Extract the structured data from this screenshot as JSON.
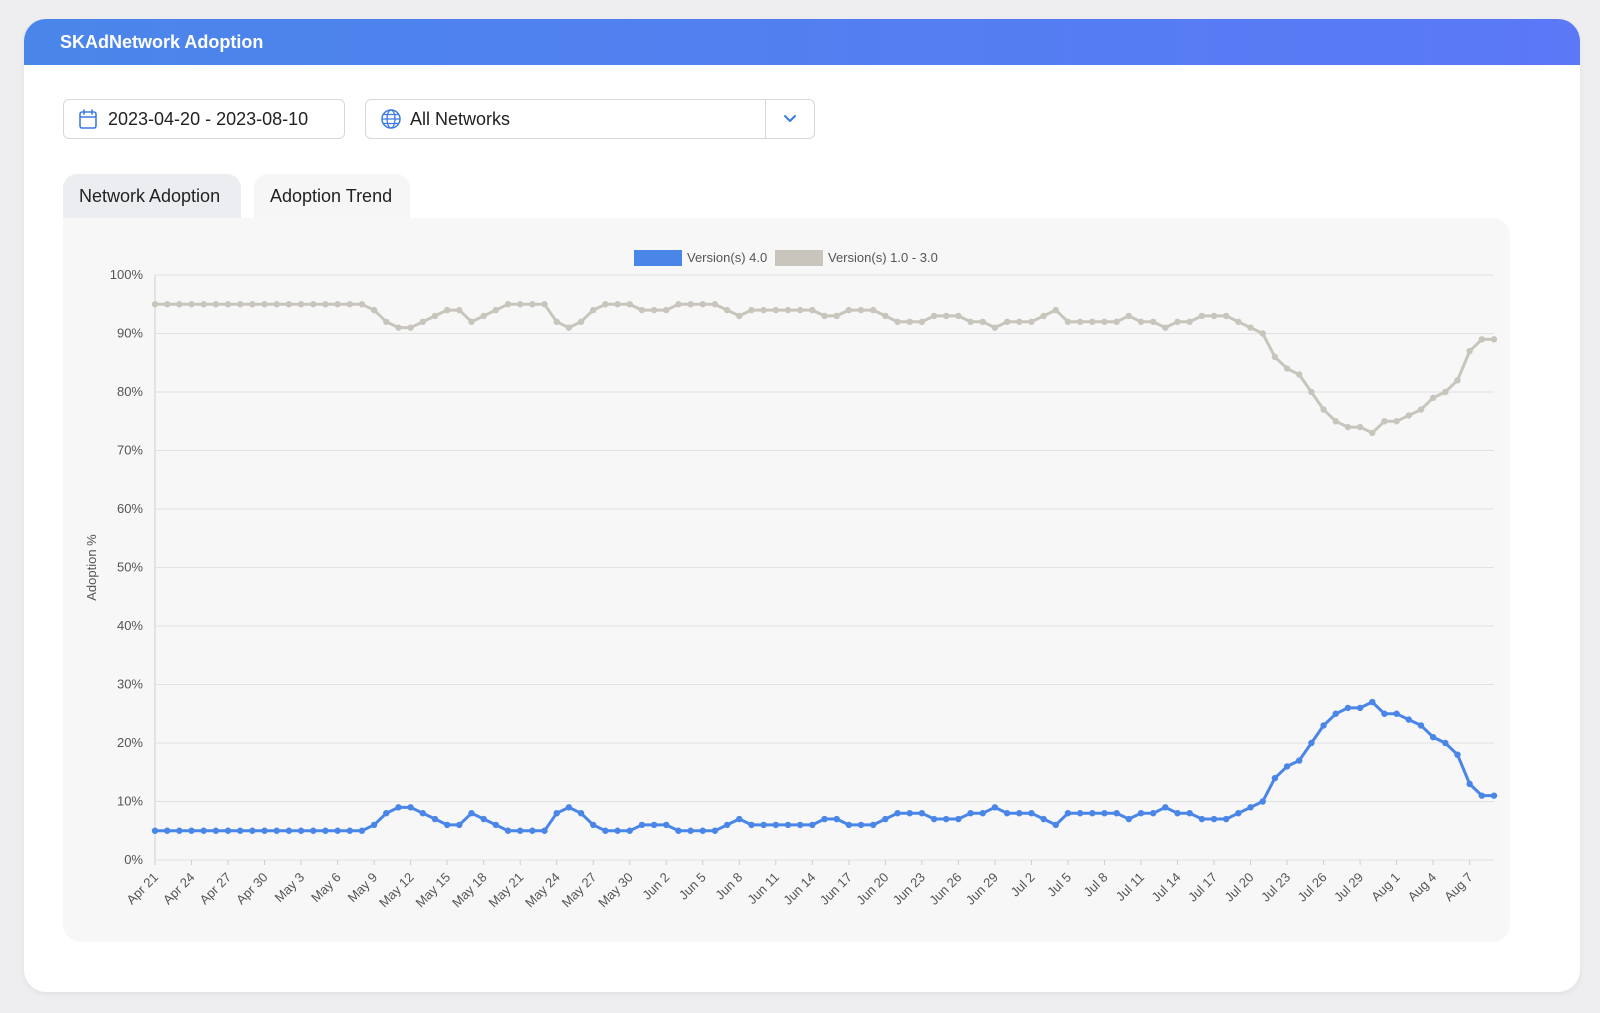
{
  "header": {
    "title": "SKAdNetwork Adoption"
  },
  "filters": {
    "date_range": "2023-04-20 - 2023-08-10",
    "network": "All Networks"
  },
  "tabs": [
    {
      "label": "Network Adoption"
    },
    {
      "label": "Adoption Trend"
    }
  ],
  "colors": {
    "header_gradient_start": "#4a86ea",
    "header_gradient_end": "#5b78f7",
    "v4": "#4a86e8",
    "v1_3": "#c8c6bc",
    "icon": "#3b7be0"
  },
  "icons": {
    "date": "calendar-icon",
    "network": "globe-icon",
    "dropdown": "chevron-down-icon"
  },
  "chart_data": {
    "type": "line",
    "ylabel": "Adoption %",
    "ylim": [
      0,
      100
    ],
    "yticks": [
      "0%",
      "10%",
      "20%",
      "30%",
      "40%",
      "50%",
      "60%",
      "70%",
      "80%",
      "90%",
      "100%"
    ],
    "grid": true,
    "legend_position": "top-center",
    "x_tick_labels": [
      "Apr 21",
      "Apr 24",
      "Apr 27",
      "Apr 30",
      "May 3",
      "May 6",
      "May 9",
      "May 12",
      "May 15",
      "May 18",
      "May 21",
      "May 24",
      "May 27",
      "May 30",
      "Jun 2",
      "Jun 5",
      "Jun 8",
      "Jun 11",
      "Jun 14",
      "Jun 17",
      "Jun 20",
      "Jun 23",
      "Jun 26",
      "Jun 29",
      "Jul 2",
      "Jul 5",
      "Jul 8",
      "Jul 11",
      "Jul 14",
      "Jul 17",
      "Jul 20",
      "Jul 23",
      "Jul 26",
      "Jul 29",
      "Aug 1",
      "Aug 4",
      "Aug 7"
    ],
    "x_start": "2023-04-21",
    "x_end": "2023-08-10",
    "series": [
      {
        "name": "Version(s) 4.0",
        "color": "#4a86e8",
        "values": [
          5,
          5,
          5,
          5,
          5,
          5,
          5,
          5,
          5,
          5,
          5,
          5,
          5,
          5,
          5,
          5,
          5,
          5,
          6,
          8,
          9,
          9,
          8,
          7,
          6,
          6,
          8,
          7,
          6,
          5,
          5,
          5,
          5,
          8,
          9,
          8,
          6,
          5,
          5,
          5,
          6,
          6,
          6,
          5,
          5,
          5,
          5,
          6,
          7,
          6,
          6,
          6,
          6,
          6,
          6,
          7,
          7,
          6,
          6,
          6,
          7,
          8,
          8,
          8,
          7,
          7,
          7,
          8,
          8,
          9,
          8,
          8,
          8,
          7,
          6,
          8,
          8,
          8,
          8,
          8,
          7,
          8,
          8,
          9,
          8,
          8,
          7,
          7,
          7,
          8,
          9,
          10,
          14,
          16,
          17,
          20,
          23,
          25,
          26,
          26,
          27,
          25,
          25,
          24,
          23,
          21,
          20,
          18,
          13,
          11,
          11
        ]
      },
      {
        "name": "Version(s) 1.0 - 3.0",
        "color": "#c8c6bc",
        "values": [
          95,
          95,
          95,
          95,
          95,
          95,
          95,
          95,
          95,
          95,
          95,
          95,
          95,
          95,
          95,
          95,
          95,
          95,
          94,
          92,
          91,
          91,
          92,
          93,
          94,
          94,
          92,
          93,
          94,
          95,
          95,
          95,
          95,
          92,
          91,
          92,
          94,
          95,
          95,
          95,
          94,
          94,
          94,
          95,
          95,
          95,
          95,
          94,
          93,
          94,
          94,
          94,
          94,
          94,
          94,
          93,
          93,
          94,
          94,
          94,
          93,
          92,
          92,
          92,
          93,
          93,
          93,
          92,
          92,
          91,
          92,
          92,
          92,
          93,
          94,
          92,
          92,
          92,
          92,
          92,
          93,
          92,
          92,
          91,
          92,
          92,
          93,
          93,
          93,
          92,
          91,
          90,
          86,
          84,
          83,
          80,
          77,
          75,
          74,
          74,
          73,
          75,
          75,
          76,
          77,
          79,
          80,
          82,
          87,
          89,
          89
        ]
      }
    ]
  }
}
